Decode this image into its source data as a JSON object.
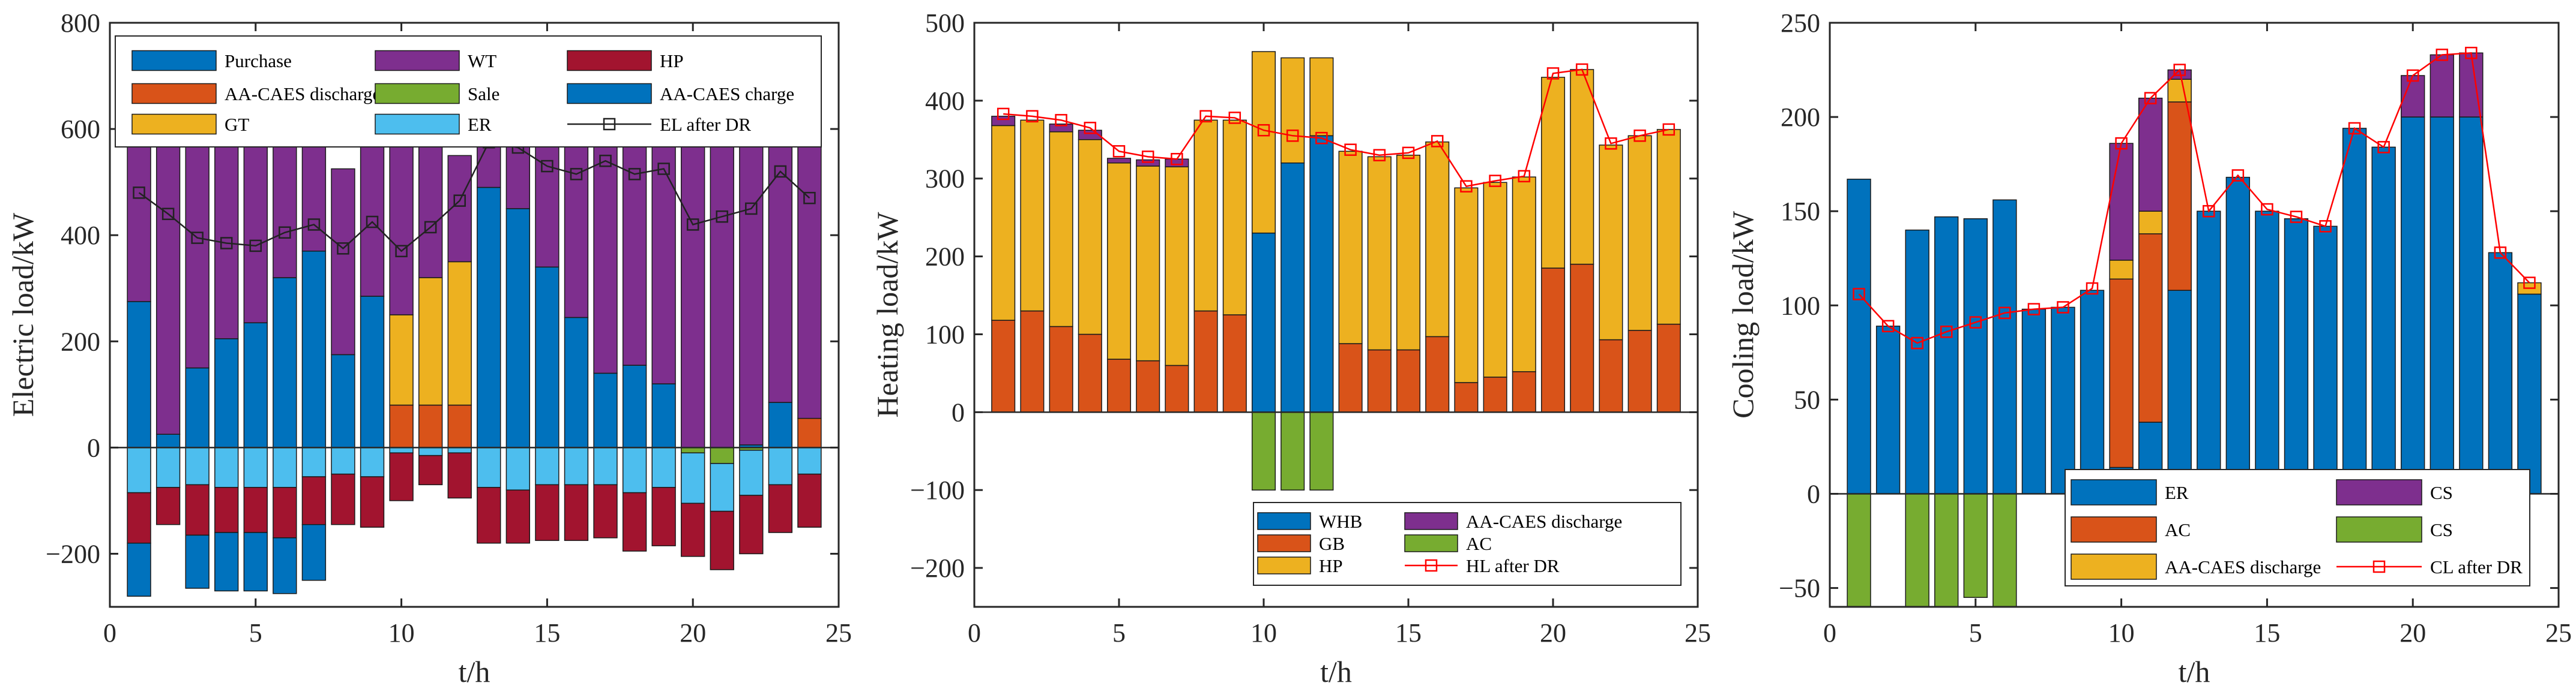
{
  "chart_data": [
    {
      "type": "bar",
      "stacked": true,
      "xlabel": "t/h",
      "ylabel": "Electric load/kW",
      "xlim": [
        0,
        25
      ],
      "ylim": [
        -300,
        800
      ],
      "xticks": [
        0,
        5,
        10,
        15,
        20,
        25
      ],
      "yticks": [
        -200,
        0,
        200,
        400,
        600,
        800
      ],
      "ytick_labels": [
        "−200",
        "0",
        "200",
        "400",
        "600",
        "800"
      ],
      "x": [
        1,
        2,
        3,
        4,
        5,
        6,
        7,
        8,
        9,
        10,
        11,
        12,
        13,
        14,
        15,
        16,
        17,
        18,
        19,
        20,
        21,
        22,
        23,
        24
      ],
      "legend_position": "top",
      "series": [
        {
          "name": "Purchase",
          "color": "#0072BD",
          "values": [
            275,
            25,
            150,
            205,
            235,
            320,
            370,
            175,
            285,
            0,
            0,
            0,
            490,
            450,
            340,
            245,
            140,
            155,
            120,
            0,
            0,
            5,
            85,
            0
          ]
        },
        {
          "name": "AA-CAES discharge",
          "color": "#D95319",
          "values": [
            0,
            0,
            0,
            0,
            0,
            0,
            0,
            0,
            0,
            80,
            80,
            80,
            0,
            0,
            0,
            0,
            0,
            0,
            0,
            0,
            0,
            0,
            0,
            55
          ]
        },
        {
          "name": "GT",
          "color": "#EDB120",
          "values": [
            0,
            0,
            0,
            0,
            0,
            0,
            0,
            0,
            0,
            170,
            240,
            270,
            0,
            0,
            0,
            0,
            0,
            0,
            0,
            0,
            0,
            0,
            0,
            0
          ]
        },
        {
          "name": "WT",
          "color": "#7E2F8E",
          "values": [
            485,
            555,
            515,
            450,
            410,
            360,
            295,
            350,
            290,
            380,
            415,
            200,
            255,
            295,
            365,
            440,
            570,
            555,
            595,
            630,
            665,
            645,
            600,
            570
          ]
        },
        {
          "name": "Sale",
          "color": "#77AC30",
          "values": [
            0,
            0,
            0,
            0,
            0,
            0,
            0,
            0,
            0,
            0,
            0,
            0,
            0,
            0,
            0,
            0,
            0,
            0,
            0,
            -10,
            -30,
            -5,
            0,
            0
          ]
        },
        {
          "name": "ER",
          "color": "#4DBEEE",
          "values": [
            -85,
            -75,
            -70,
            -75,
            -75,
            -75,
            -55,
            -50,
            -55,
            -10,
            -15,
            -10,
            -75,
            -80,
            -70,
            -70,
            -70,
            -85,
            -75,
            -95,
            -90,
            -85,
            -70,
            -50
          ]
        },
        {
          "name": "HP",
          "color": "#A2142F",
          "values": [
            -95,
            -70,
            -95,
            -85,
            -85,
            -95,
            -90,
            -95,
            -95,
            -90,
            -55,
            -85,
            -105,
            -100,
            -105,
            -105,
            -100,
            -110,
            -110,
            -100,
            -110,
            -110,
            -90,
            -100
          ]
        },
        {
          "name": "AA-CAES charge",
          "color": "#0072BD",
          "values": [
            -100,
            0,
            -100,
            -110,
            -110,
            -105,
            -105,
            0,
            0,
            0,
            0,
            0,
            0,
            0,
            0,
            0,
            0,
            0,
            0,
            0,
            0,
            0,
            0,
            0
          ]
        }
      ],
      "line": {
        "name": "EL after DR",
        "color": "#222222",
        "marker": "square",
        "values": [
          480,
          440,
          395,
          385,
          380,
          405,
          420,
          375,
          425,
          370,
          415,
          465,
          575,
          565,
          530,
          515,
          540,
          515,
          525,
          420,
          435,
          450,
          520,
          470
        ]
      }
    },
    {
      "type": "bar",
      "stacked": true,
      "xlabel": "t/h",
      "ylabel": "Heating load/kW",
      "xlim": [
        0,
        25
      ],
      "ylim": [
        -250,
        500
      ],
      "xticks": [
        0,
        5,
        10,
        15,
        20,
        25
      ],
      "yticks": [
        -200,
        -100,
        0,
        100,
        200,
        300,
        400,
        500
      ],
      "ytick_labels": [
        "−200",
        "−100",
        "0",
        "100",
        "200",
        "300",
        "400",
        "500"
      ],
      "x": [
        1,
        2,
        3,
        4,
        5,
        6,
        7,
        8,
        9,
        10,
        11,
        12,
        13,
        14,
        15,
        16,
        17,
        18,
        19,
        20,
        21,
        22,
        23,
        24
      ],
      "legend_position": "bottom-right",
      "series": [
        {
          "name": "WHB",
          "color": "#0072BD",
          "values": [
            0,
            0,
            0,
            0,
            0,
            0,
            0,
            0,
            0,
            230,
            320,
            355,
            0,
            0,
            0,
            0,
            0,
            0,
            0,
            0,
            0,
            0,
            0,
            0
          ]
        },
        {
          "name": "GB",
          "color": "#D95319",
          "values": [
            118,
            130,
            110,
            100,
            68,
            66,
            60,
            130,
            125,
            0,
            0,
            0,
            88,
            80,
            80,
            97,
            38,
            45,
            52,
            185,
            190,
            93,
            105,
            113
          ]
        },
        {
          "name": "HP",
          "color": "#EDB120",
          "values": [
            250,
            245,
            250,
            250,
            252,
            250,
            255,
            245,
            250,
            233,
            135,
            100,
            247,
            248,
            250,
            250,
            250,
            250,
            250,
            245,
            250,
            250,
            250,
            250
          ]
        },
        {
          "name": "AA-CAES discharge",
          "color": "#7E2F8E",
          "values": [
            12,
            0,
            10,
            12,
            6,
            8,
            10,
            0,
            0,
            0,
            0,
            0,
            0,
            0,
            0,
            0,
            0,
            0,
            0,
            0,
            0,
            0,
            0,
            0
          ]
        },
        {
          "name": "AC",
          "color": "#77AC30",
          "values": [
            0,
            0,
            0,
            0,
            0,
            0,
            0,
            0,
            0,
            -100,
            -100,
            -100,
            0,
            0,
            0,
            0,
            0,
            0,
            0,
            0,
            0,
            0,
            0,
            0
          ]
        }
      ],
      "line": {
        "name": "HL after DR",
        "color": "#FF0000",
        "marker": "square",
        "values": [
          383,
          380,
          375,
          365,
          335,
          328,
          325,
          380,
          378,
          362,
          355,
          352,
          337,
          330,
          333,
          348,
          290,
          297,
          303,
          435,
          440,
          345,
          355,
          363
        ]
      }
    },
    {
      "type": "bar",
      "stacked": true,
      "xlabel": "t/h",
      "ylabel": "Cooling load/kW",
      "xlim": [
        0,
        25
      ],
      "ylim": [
        -60,
        250
      ],
      "xticks": [
        0,
        5,
        10,
        15,
        20,
        25
      ],
      "yticks": [
        -50,
        0,
        50,
        100,
        150,
        200,
        250
      ],
      "ytick_labels": [
        "−50",
        "0",
        "50",
        "100",
        "150",
        "200",
        "250"
      ],
      "x": [
        1,
        2,
        3,
        4,
        5,
        6,
        7,
        8,
        9,
        10,
        11,
        12,
        13,
        14,
        15,
        16,
        17,
        18,
        19,
        20,
        21,
        22,
        23,
        24
      ],
      "legend_position": "bottom-right",
      "series": [
        {
          "name": "ER",
          "color": "#0072BD",
          "values": [
            167,
            89,
            140,
            147,
            146,
            156,
            98,
            99,
            108,
            14,
            38,
            108,
            150,
            168,
            150,
            146,
            142,
            194,
            184,
            200,
            200,
            200,
            128,
            106
          ]
        },
        {
          "name": "AC",
          "color": "#D95319",
          "values": [
            0,
            0,
            0,
            0,
            0,
            0,
            0,
            0,
            0,
            100,
            100,
            100,
            0,
            0,
            0,
            0,
            0,
            0,
            0,
            0,
            0,
            0,
            0,
            0
          ]
        },
        {
          "name": "AA-CAES discharge",
          "color": "#EDB120",
          "values": [
            0,
            0,
            0,
            0,
            0,
            0,
            0,
            0,
            0,
            10,
            12,
            12,
            0,
            0,
            0,
            0,
            0,
            0,
            0,
            0,
            0,
            0,
            0,
            6
          ]
        },
        {
          "name": "CS",
          "color": "#7E2F8E",
          "values": [
            0,
            0,
            0,
            0,
            0,
            0,
            0,
            0,
            0,
            62,
            60,
            5,
            0,
            0,
            0,
            0,
            0,
            0,
            0,
            22,
            33,
            34,
            0,
            0
          ]
        },
        {
          "name": "CS",
          "color": "#77AC30",
          "values": [
            -60,
            0,
            -60,
            -60,
            -55,
            -60,
            0,
            0,
            0,
            0,
            0,
            0,
            0,
            0,
            0,
            0,
            0,
            0,
            0,
            0,
            0,
            0,
            0,
            0
          ]
        }
      ],
      "line": {
        "name": "CL after DR",
        "color": "#FF0000",
        "marker": "square",
        "values": [
          106,
          89,
          80,
          86,
          91,
          96,
          98,
          99,
          109,
          186,
          210,
          225,
          150,
          169,
          151,
          147,
          142,
          194,
          184,
          222,
          233,
          234,
          128,
          112
        ]
      }
    }
  ]
}
